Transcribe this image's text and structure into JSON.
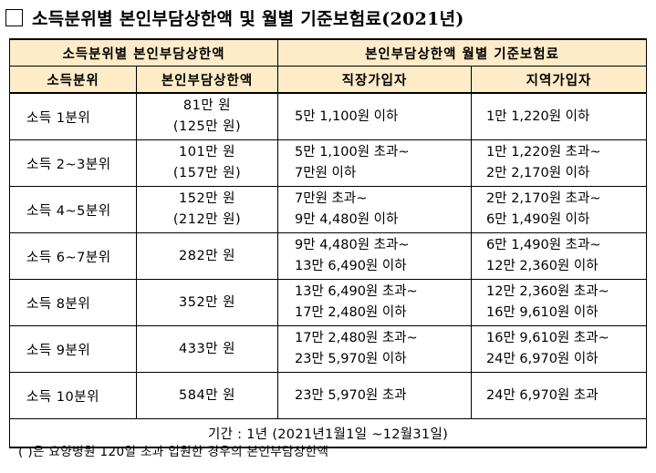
{
  "title": "소득분위별 본인부담상한액 및 월별 기준보험료(2021년)",
  "header": {
    "group1": "소득분위별 본인부담상한액",
    "group2": "본인부담상한액 월별 기준보험료",
    "col_decile": "소득분위",
    "col_amount": "본인부담상한액",
    "col_work": "직장가입자",
    "col_region": "지역가입자"
  },
  "rows": [
    {
      "decile": "소득 1분위",
      "amount": [
        "81만 원",
        "(125만 원)"
      ],
      "work": [
        "5만 1,100원 이하"
      ],
      "region": [
        "1만 1,220원 이하"
      ]
    },
    {
      "decile": "소득 2~3분위",
      "amount": [
        "101만 원",
        "(157만 원)"
      ],
      "work": [
        "5만 1,100원 초과~",
        "7만원 이하"
      ],
      "region": [
        "1만 1,220원 초과~",
        "2만 2,170원 이하"
      ]
    },
    {
      "decile": "소득 4~5분위",
      "amount": [
        "152만 원",
        "(212만 원)"
      ],
      "work": [
        "7만원 초과~",
        "9만 4,480원 이하"
      ],
      "region": [
        "2만 2,170원 초과~",
        "6만 1,490원 이하"
      ]
    },
    {
      "decile": "소득 6~7분위",
      "amount": [
        "282만 원"
      ],
      "work": [
        "9만 4,480원 초과~",
        "13만 6,490원 이하"
      ],
      "region": [
        "6만 1,490원 초과~",
        "12만 2,360원 이하"
      ]
    },
    {
      "decile": "소득 8분위",
      "amount": [
        "352만 원"
      ],
      "work": [
        "13만 6,490원 초과~",
        "17만 2,480원 이하"
      ],
      "region": [
        "12만 2,360원 초과~",
        "16만 9,610원 이하"
      ]
    },
    {
      "decile": "소득 9분위",
      "amount": [
        "433만 원"
      ],
      "work": [
        "17만 2,480원 초과~",
        "23만 5,970원 이하"
      ],
      "region": [
        "16만 9,610원 초과~",
        "24만 6,970원 이하"
      ]
    },
    {
      "decile": "소득 10분위",
      "amount": [
        "584만 원"
      ],
      "work": [
        "23만 5,970원 초과"
      ],
      "region": [
        "24만 6,970원 초과"
      ]
    }
  ],
  "period": "기간 : 1년 (2021년1월1일 ~12월31일)",
  "footnote": "(    )은 요양병원 120일 초과 입원한 경우의 본인부담상한액",
  "colors": {
    "header_bg": "#fdecc7",
    "border": "#000000"
  }
}
